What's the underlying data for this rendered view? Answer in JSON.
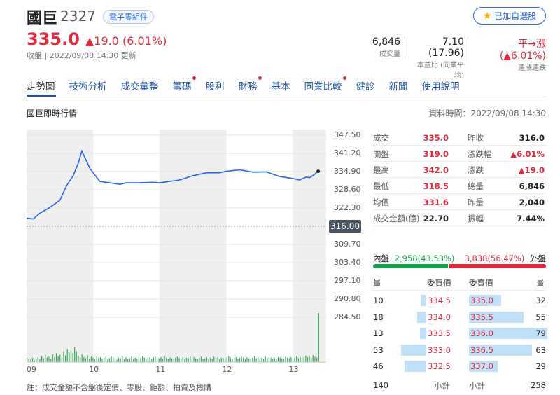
{
  "header": {
    "name": "國巨",
    "code": "2327",
    "industry": "電子零組件",
    "watch_label": "已加自選股",
    "price": "335.0",
    "change": "▲19.0 (6.01%)",
    "close_time": "收盤 | 2022/09/08 14:30 更新",
    "stats": [
      {
        "value": "6,846",
        "label": "成交量"
      },
      {
        "value": "7.10 (17.96)",
        "label": "本益比 (同業平均)"
      },
      {
        "value_prefix": "平→漲 (",
        "value_hl": "▲6.01%",
        "value_suffix": ")",
        "label": "連漲連跌"
      }
    ]
  },
  "tabs": [
    {
      "label": "走勢圖",
      "dot": false
    },
    {
      "label": "技術分析",
      "dot": false
    },
    {
      "label": "成交彙整",
      "dot": false
    },
    {
      "label": "籌碼",
      "dot": true
    },
    {
      "label": "股利",
      "dot": false
    },
    {
      "label": "財務",
      "dot": true
    },
    {
      "label": "基本",
      "dot": false
    },
    {
      "label": "同業比較",
      "dot": true
    },
    {
      "label": "健診",
      "dot": false
    },
    {
      "label": "新聞",
      "dot": false
    },
    {
      "label": "使用說明",
      "dot": false
    }
  ],
  "section_title": "國巨即時行情",
  "data_time": "資料時間：2022/09/08 14:30",
  "chart_data": {
    "type": "line",
    "title": "",
    "y_ticks": [
      "347.50",
      "341.20",
      "334.90",
      "328.60",
      "322.30",
      "316.00",
      "309.70",
      "303.40",
      "297.10",
      "290.80",
      "284.50"
    ],
    "x_ticks": [
      "09",
      "10",
      "11",
      "12",
      "13"
    ],
    "ylim": [
      284.5,
      347.5
    ],
    "prev_close": 316.0,
    "prev_close_label": "316.00",
    "series": [
      {
        "x": [
          9.0,
          9.1,
          9.2,
          9.35,
          9.5,
          9.6,
          9.7,
          9.78,
          9.83,
          9.9,
          9.95,
          10.0,
          10.1,
          10.25,
          10.4,
          10.5,
          10.7,
          10.9,
          11.0,
          11.15,
          11.3,
          11.5,
          11.7,
          11.9,
          12.0,
          12.2,
          12.4,
          12.6,
          12.8,
          13.0,
          13.1,
          13.2,
          13.25,
          13.3,
          13.38
        ],
        "y": [
          318.8,
          318.5,
          320.5,
          322.5,
          325.0,
          330.0,
          333.5,
          338.0,
          342.0,
          338.5,
          336.0,
          334.5,
          331.5,
          331.0,
          330.5,
          331.0,
          331.0,
          331.2,
          331.0,
          331.5,
          332.0,
          333.5,
          334.5,
          334.5,
          335.0,
          335.5,
          334.7,
          334.8,
          333.2,
          332.5,
          332.0,
          333.0,
          332.8,
          333.5,
          335.0
        ]
      }
    ],
    "volume": [
      8,
      6,
      5,
      9,
      4,
      7,
      10,
      6,
      12,
      8,
      14,
      9,
      11,
      7,
      16,
      10,
      18,
      12,
      15,
      9,
      22,
      14,
      26,
      20,
      24,
      18,
      30,
      22,
      12,
      9,
      16,
      10,
      8,
      14,
      7,
      11,
      9,
      6,
      12,
      8,
      10,
      7,
      9,
      13,
      6,
      8,
      11,
      7,
      10,
      5,
      9,
      8,
      12,
      6,
      10,
      7,
      8,
      11,
      6,
      9,
      7,
      10,
      8,
      12,
      9,
      6,
      8,
      10,
      7,
      9,
      11,
      6,
      8,
      10,
      7,
      12,
      9,
      7,
      10,
      8,
      6,
      9,
      11,
      8,
      7,
      10,
      6,
      9,
      8,
      12,
      7,
      10,
      8,
      6,
      9,
      11,
      7,
      8,
      10,
      6,
      9,
      7,
      11,
      8,
      10,
      6,
      9,
      8,
      7,
      10,
      12,
      8,
      6,
      9,
      10,
      7,
      8,
      11,
      9,
      6,
      10,
      8,
      7,
      9,
      12,
      8,
      10,
      6,
      9,
      7,
      11,
      8,
      10,
      9,
      7,
      8,
      6,
      10,
      9,
      8,
      7,
      11,
      9,
      8,
      10,
      7,
      9,
      12,
      8,
      10,
      9,
      11,
      13,
      10,
      12,
      9,
      14,
      11,
      9,
      100
    ]
  },
  "quote": [
    [
      {
        "label": "成交",
        "value": "335.0"
      },
      {
        "label": "昨收",
        "value": "316.0"
      }
    ],
    [
      {
        "label": "開盤",
        "value": "319.0"
      },
      {
        "label": "漲跌幅",
        "value": "▲6.01%"
      }
    ],
    [
      {
        "label": "最高",
        "value": "342.0"
      },
      {
        "label": "漲跌",
        "value": "▲19.0"
      }
    ],
    [
      {
        "label": "最低",
        "value": "318.5"
      },
      {
        "label": "總量",
        "value": "6,846"
      }
    ],
    [
      {
        "label": "均價",
        "value": "331.6"
      },
      {
        "label": "昨量",
        "value": "2,040"
      }
    ],
    [
      {
        "label": "成交金額(億)",
        "value": "22.70"
      },
      {
        "label": "振幅",
        "value": "7.44%"
      }
    ]
  ],
  "inout": {
    "in_label": "內盤",
    "in_value": "2,958",
    "in_pct": "(43.53%)",
    "in_ratio": 0.4353,
    "out_value": "3,838",
    "out_pct": "(56.47%)",
    "out_label": "外盤"
  },
  "orderbook": {
    "headers": [
      "量",
      "委買價",
      "委賣價",
      "量"
    ],
    "rows": [
      {
        "bid_qty": "10",
        "bid": "334.5",
        "bid_bar": 0.13,
        "ask": "335.0",
        "ask_qty": "32",
        "ask_bar": 0.41
      },
      {
        "bid_qty": "18",
        "bid": "334.0",
        "bid_bar": 0.23,
        "ask": "335.5",
        "ask_qty": "55",
        "ask_bar": 0.7
      },
      {
        "bid_qty": "13",
        "bid": "333.5",
        "bid_bar": 0.16,
        "ask": "336.0",
        "ask_qty": "79",
        "ask_bar": 1.0
      },
      {
        "bid_qty": "53",
        "bid": "333.0",
        "bid_bar": 0.67,
        "ask": "336.5",
        "ask_qty": "63",
        "ask_bar": 0.8
      },
      {
        "bid_qty": "46",
        "bid": "332.5",
        "bid_bar": 0.58,
        "ask": "337.0",
        "ask_qty": "29",
        "ask_bar": 0.37
      }
    ],
    "bid_total": "140",
    "subtotal_label": "小計",
    "ask_total": "258"
  },
  "footnote": "註：成交金額不含盤後定價、零股、鉅額、拍賣及標購"
}
